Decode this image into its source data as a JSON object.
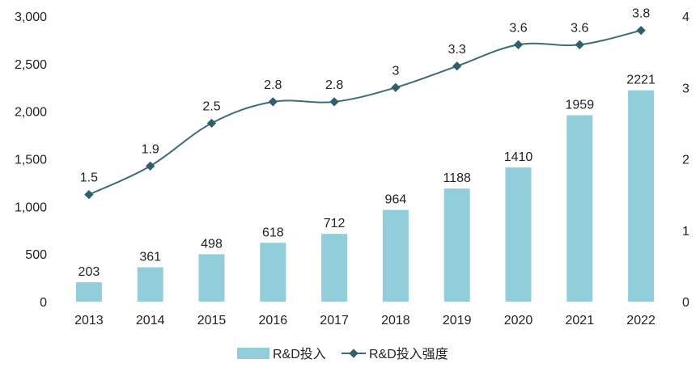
{
  "chart_data": {
    "type": "bar+line",
    "categories": [
      "2013",
      "2014",
      "2015",
      "2016",
      "2017",
      "2018",
      "2019",
      "2020",
      "2021",
      "2022"
    ],
    "series": [
      {
        "name": "R&D投入",
        "kind": "bar",
        "axis": "left",
        "values": [
          203,
          361,
          498,
          618,
          712,
          964,
          1188,
          1410,
          1959,
          2221
        ],
        "labels": [
          "203",
          "361",
          "498",
          "618",
          "712",
          "964",
          "1188",
          "1410",
          "1959",
          "2221"
        ],
        "color": "#92cddc"
      },
      {
        "name": "R&D投入强度",
        "kind": "line",
        "axis": "right",
        "values": [
          1.5,
          1.9,
          2.5,
          2.8,
          2.8,
          3.0,
          3.3,
          3.6,
          3.6,
          3.8
        ],
        "labels": [
          "1.5",
          "1.9",
          "2.5",
          "2.8",
          "2.8",
          "3",
          "3.3",
          "3.6",
          "3.6",
          "3.8"
        ],
        "color": "#3e6b78"
      }
    ],
    "y_left": {
      "ylim": [
        0,
        3000
      ],
      "ticks": [
        0,
        500,
        1000,
        1500,
        2000,
        2500,
        3000
      ],
      "tick_labels": [
        "0",
        "500",
        "1,000",
        "1,500",
        "2,000",
        "2,500",
        "3,000"
      ]
    },
    "y_right": {
      "ylim": [
        0,
        4
      ],
      "ticks": [
        0,
        1,
        2,
        3,
        4
      ],
      "tick_labels": [
        "0",
        "1",
        "2",
        "3",
        "4"
      ]
    },
    "legend_position": "bottom-center",
    "grid": false
  }
}
